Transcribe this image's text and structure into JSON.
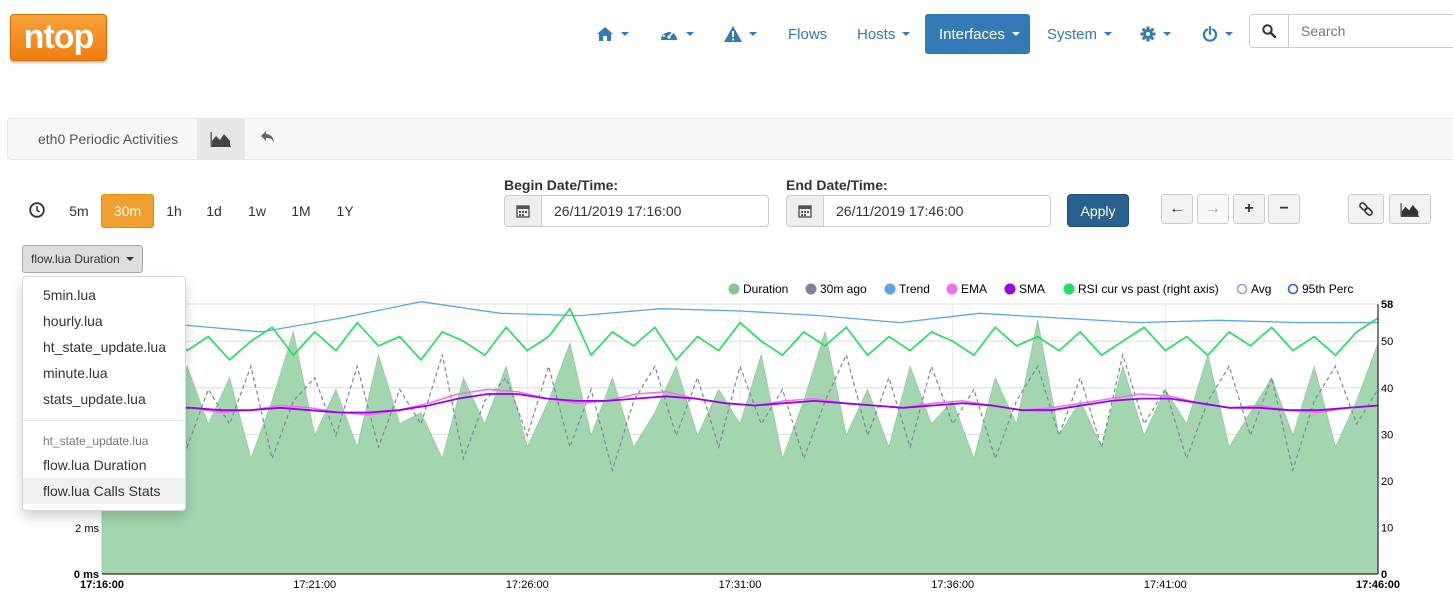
{
  "logo": {
    "text": "ntop"
  },
  "nav": {
    "home_icon": "home-icon",
    "dashboard_icon": "dashboard-icon",
    "alerts_icon": "alert-icon",
    "flows": "Flows",
    "hosts": "Hosts",
    "interfaces": "Interfaces",
    "system": "System",
    "settings_icon": "gear-icon",
    "power_icon": "power-icon"
  },
  "search": {
    "placeholder": "Search"
  },
  "breadcrumb": {
    "title": "eth0 Periodic Activities"
  },
  "time_ranges": [
    "5m",
    "30m",
    "1h",
    "1d",
    "1w",
    "1M",
    "1Y"
  ],
  "selected_range": "30m",
  "begin": {
    "label": "Begin Date/Time:",
    "value": "26/11/2019 17:16:00"
  },
  "end": {
    "label": "End Date/Time:",
    "value": "26/11/2019 17:46:00"
  },
  "apply_label": "Apply",
  "metric_dropdown": {
    "selected": "flow.lua Duration",
    "items": [
      "5min.lua",
      "hourly.lua",
      "ht_state_update.lua",
      "minute.lua",
      "stats_update.lua"
    ],
    "section_header": "ht_state_update.lua",
    "section_items": [
      "flow.lua Duration",
      "flow.lua Calls Stats"
    ],
    "highlighted": "flow.lua Calls Stats"
  },
  "chart_data": {
    "type": "area",
    "legend": [
      {
        "name": "Duration",
        "color": "#82c791",
        "style": "filled"
      },
      {
        "name": "30m ago",
        "color": "#7c8598",
        "style": "filled"
      },
      {
        "name": "Trend",
        "color": "#5aa7e8",
        "style": "filled"
      },
      {
        "name": "EMA",
        "color": "#ef6ff0",
        "style": "filled"
      },
      {
        "name": "SMA",
        "color": "#9a00e6",
        "style": "filled"
      },
      {
        "name": "RSI cur vs past (right axis)",
        "color": "#1ce05a",
        "style": "filled"
      },
      {
        "name": "Avg",
        "color": "#9c9cd6",
        "style": "hollow"
      },
      {
        "name": "95th Perc",
        "color": "#2f5fd6",
        "style": "hollow"
      }
    ],
    "x_ticks": [
      "17:16:00",
      "17:21:00",
      "17:26:00",
      "17:31:00",
      "17:36:00",
      "17:41:00",
      "17:46:00"
    ],
    "x_range_minutes": [
      0,
      30
    ],
    "y_left": {
      "ticks": [
        "0 ms",
        "2 ms"
      ],
      "values": [
        0,
        2
      ],
      "range_ms": [
        0,
        11.7
      ]
    },
    "y_right": {
      "ticks": [
        "0",
        "10",
        "20",
        "30",
        "40",
        "50",
        "58"
      ],
      "values": [
        0,
        10,
        20,
        30,
        40,
        50,
        58
      ],
      "range": [
        0,
        58
      ]
    },
    "series": {
      "duration_ms": [
        6.0,
        9.5,
        7.0,
        5.5,
        9.0,
        6.5,
        8.5,
        5.0,
        7.5,
        10.5,
        6.0,
        8.0,
        5.5,
        9.5,
        6.5,
        7.0,
        5.0,
        8.5,
        6.5,
        9.0,
        5.5,
        7.5,
        10.0,
        6.0,
        8.5,
        5.5,
        7.0,
        9.0,
        6.0,
        8.0,
        6.5,
        9.5,
        5.0,
        7.5,
        10.5,
        6.0,
        8.0,
        5.5,
        9.0,
        6.5,
        7.5,
        5.0,
        8.5,
        6.5,
        11.0,
        6.0,
        7.5,
        5.5,
        9.0,
        6.0,
        8.0,
        6.5,
        9.5,
        5.5,
        7.0,
        8.5,
        6.0,
        9.0,
        5.5,
        7.5,
        10.0
      ],
      "ago_ms": [
        7.0,
        8.5,
        6.0,
        9.5,
        5.5,
        8.0,
        6.5,
        9.0,
        5.0,
        7.5,
        8.5,
        6.0,
        9.0,
        5.5,
        8.0,
        6.5,
        9.5,
        5.0,
        7.5,
        8.5,
        6.0,
        9.0,
        5.5,
        8.0,
        4.5,
        7.5,
        9.0,
        6.0,
        8.5,
        5.5,
        9.0,
        6.5,
        8.0,
        5.0,
        7.5,
        9.5,
        6.0,
        8.5,
        5.5,
        9.0,
        6.5,
        8.0,
        5.0,
        7.5,
        9.0,
        6.0,
        8.5,
        5.5,
        9.5,
        6.5,
        8.0,
        5.0,
        7.5,
        9.0,
        6.0,
        8.5,
        4.5,
        7.5,
        9.0,
        6.5,
        8.0
      ],
      "trend_right": [
        55,
        53.5,
        52,
        55,
        58.5,
        56,
        55.5,
        57,
        56.5,
        55.5,
        54,
        56,
        55,
        54,
        54.5,
        54,
        54
      ],
      "ema_ms": [
        7.1,
        7.2,
        7.3,
        7.2,
        7.0,
        7.1,
        7.3,
        7.2,
        7.0,
        6.9,
        7.1,
        7.4,
        7.8,
        8.0,
        7.9,
        7.6,
        7.4,
        7.5,
        7.8,
        7.9,
        7.6,
        7.4,
        7.3,
        7.5,
        7.6,
        7.4,
        7.3,
        7.2,
        7.4,
        7.5,
        7.3,
        7.1,
        7.2,
        7.4,
        7.6,
        7.8,
        7.7,
        7.4,
        7.2,
        7.3,
        7.1,
        7.0,
        7.2,
        7.3
      ],
      "sma_ms": [
        7.1,
        7.1,
        7.2,
        7.2,
        7.1,
        7.1,
        7.2,
        7.1,
        7.0,
        7.0,
        7.1,
        7.3,
        7.6,
        7.8,
        7.8,
        7.6,
        7.5,
        7.5,
        7.6,
        7.7,
        7.6,
        7.4,
        7.3,
        7.4,
        7.5,
        7.4,
        7.3,
        7.2,
        7.3,
        7.4,
        7.3,
        7.1,
        7.1,
        7.3,
        7.5,
        7.6,
        7.6,
        7.4,
        7.2,
        7.2,
        7.1,
        7.1,
        7.2,
        7.3
      ],
      "rsi_right": [
        49,
        52,
        47,
        53,
        48,
        51,
        46,
        50,
        53,
        47,
        52,
        48,
        54,
        49,
        51,
        46,
        52,
        50,
        47,
        53,
        48,
        51,
        57,
        47,
        52,
        49,
        53,
        46,
        51,
        48,
        54,
        50,
        47,
        52,
        49,
        53,
        47,
        51,
        48,
        52,
        50,
        47,
        53,
        49,
        51,
        48,
        52,
        47,
        50,
        53,
        48,
        51,
        47,
        52,
        49,
        53,
        48,
        51,
        47,
        52,
        55
      ]
    }
  }
}
